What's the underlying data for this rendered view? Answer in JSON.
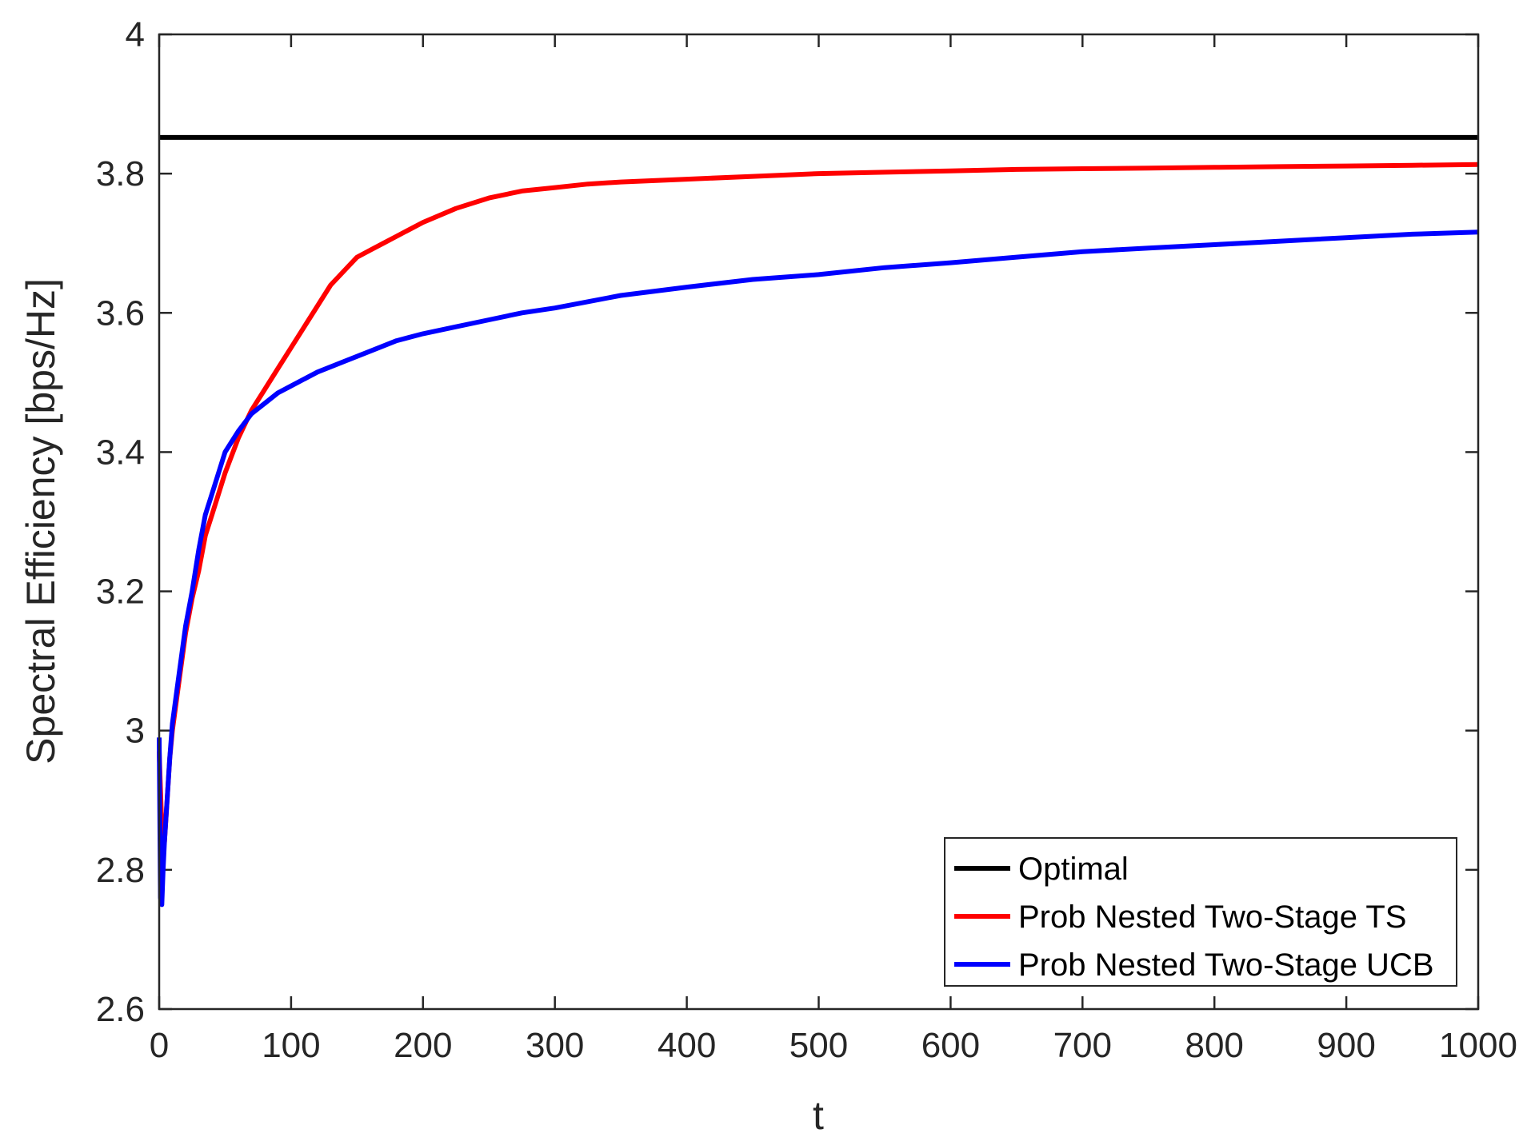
{
  "chart_data": {
    "type": "line",
    "xlabel": "t",
    "ylabel": "Spectral Efficiency [bps/Hz]",
    "xlim": [
      0,
      1000
    ],
    "ylim": [
      2.6,
      4.0
    ],
    "xticks": [
      0,
      100,
      200,
      300,
      400,
      500,
      600,
      700,
      800,
      900,
      1000
    ],
    "yticks": [
      2.6,
      2.8,
      3.0,
      3.2,
      3.4,
      3.6,
      3.8,
      4.0
    ],
    "xtick_labels": [
      "0",
      "100",
      "200",
      "300",
      "400",
      "500",
      "600",
      "700",
      "800",
      "900",
      "1000"
    ],
    "ytick_labels": [
      "2.6",
      "2.8",
      "3",
      "3.2",
      "3.4",
      "3.6",
      "3.8",
      "4"
    ],
    "grid": false,
    "legend_position": "bottom-right",
    "series": [
      {
        "name": "Optimal",
        "color": "#000000",
        "x": [
          0,
          1000
        ],
        "y": [
          3.852,
          3.852
        ]
      },
      {
        "name": "Prob Nested Two-Stage TS",
        "color": "#ff0000",
        "x": [
          0,
          2,
          4,
          6,
          8,
          10,
          15,
          20,
          25,
          30,
          35,
          40,
          45,
          50,
          60,
          70,
          80,
          90,
          100,
          110,
          120,
          130,
          140,
          150,
          160,
          170,
          180,
          190,
          200,
          225,
          250,
          275,
          300,
          325,
          350,
          375,
          400,
          450,
          500,
          550,
          600,
          650,
          700,
          750,
          800,
          850,
          900,
          950,
          1000
        ],
        "y": [
          2.97,
          2.86,
          2.84,
          2.9,
          2.96,
          3.0,
          3.07,
          3.14,
          3.19,
          3.23,
          3.28,
          3.31,
          3.34,
          3.37,
          3.42,
          3.46,
          3.49,
          3.52,
          3.55,
          3.58,
          3.61,
          3.64,
          3.66,
          3.68,
          3.69,
          3.7,
          3.71,
          3.72,
          3.73,
          3.75,
          3.765,
          3.775,
          3.78,
          3.785,
          3.788,
          3.79,
          3.792,
          3.796,
          3.8,
          3.802,
          3.804,
          3.806,
          3.807,
          3.808,
          3.809,
          3.81,
          3.811,
          3.812,
          3.813
        ]
      },
      {
        "name": "Prob Nested Two-Stage UCB",
        "color": "#0000ff",
        "x": [
          0,
          1,
          2,
          3,
          4,
          6,
          8,
          10,
          15,
          20,
          25,
          30,
          35,
          40,
          45,
          50,
          60,
          70,
          80,
          90,
          100,
          120,
          140,
          160,
          180,
          200,
          225,
          250,
          275,
          300,
          350,
          400,
          450,
          500,
          550,
          600,
          650,
          700,
          750,
          800,
          850,
          900,
          950,
          1000
        ],
        "y": [
          2.99,
          2.76,
          2.75,
          2.8,
          2.84,
          2.9,
          2.96,
          3.01,
          3.08,
          3.15,
          3.2,
          3.26,
          3.31,
          3.34,
          3.37,
          3.4,
          3.43,
          3.455,
          3.47,
          3.485,
          3.495,
          3.515,
          3.53,
          3.545,
          3.56,
          3.57,
          3.58,
          3.59,
          3.6,
          3.607,
          3.625,
          3.637,
          3.648,
          3.655,
          3.665,
          3.672,
          3.68,
          3.688,
          3.693,
          3.698,
          3.703,
          3.708,
          3.713,
          3.716
        ]
      }
    ]
  }
}
